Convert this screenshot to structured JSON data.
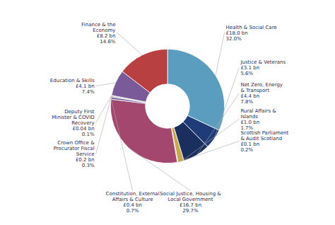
{
  "chart_data": {
    "type": "pie",
    "categories": [
      "Health & Social Care\n£18.0 bn\n32.0%",
      "Justice & Veterans\n£3.1 bn\n5.6%",
      "Net Zero, Energy\n& Transport\n£4.4 bn\n7.8%",
      "Rural Affairs &\nIslands\n£1.0 bn\n1.7%",
      "Scottish Parliament\n& Audit Scotland\n£0.1 bn\n0.2%",
      "Social Justice, Housing &\nLocal Government\n£16.7 bn\n29.7%",
      "Constitution, External\nAffairs & Culture\n£0.4 bn\n0.7%",
      "Crown Office &\nProcurator Fiscal\nService\n£0.2 bn\n0.3%",
      "Deputy First\nMinister & COVID\nRecovery\n£0.04 bn\n0.1%",
      "Education & Skills\n£4.1 bn\n7.4%",
      "Finance & the\nEconomy\n£8.2 bn\n14.6%"
    ],
    "values": [
      32.0,
      5.6,
      7.8,
      1.7,
      0.2,
      29.7,
      0.7,
      0.3,
      0.1,
      7.4,
      14.6
    ],
    "colors": [
      "#5b9dbf",
      "#1f3c78",
      "#1a2f5e",
      "#c9a84c",
      "#4a7c3f",
      "#a3476e",
      "#7b6faa",
      "#8c7b6e",
      "#c97b3a",
      "#7a5a98",
      "#b84040"
    ]
  }
}
